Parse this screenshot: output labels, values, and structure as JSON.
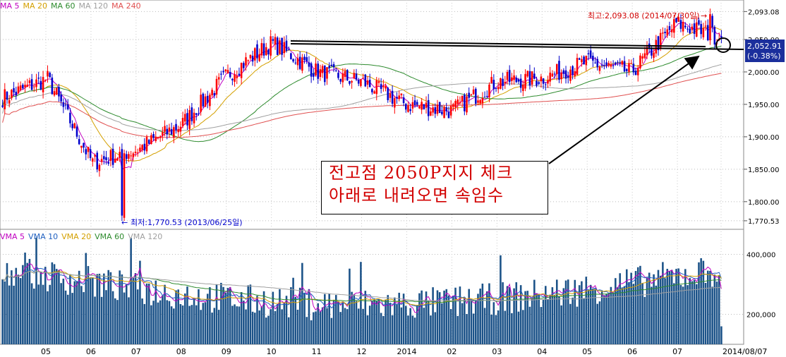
{
  "price_legend": [
    {
      "label": "MA 5",
      "color": "#c000c0"
    },
    {
      "label": "MA 20",
      "color": "#d4a000"
    },
    {
      "label": "MA 60",
      "color": "#2e8b2e"
    },
    {
      "label": "MA 120",
      "color": "#a0a0a0"
    },
    {
      "label": "MA 240",
      "color": "#e05050"
    }
  ],
  "volume_legend": [
    {
      "label": "VMA 5",
      "color": "#c000c0"
    },
    {
      "label": "VMA 10",
      "color": "#2060c0"
    },
    {
      "label": "VMA 20",
      "color": "#d4a000"
    },
    {
      "label": "VMA 60",
      "color": "#2e8b2e"
    },
    {
      "label": "VMA 120",
      "color": "#a0a0a0"
    }
  ],
  "annotation": {
    "line1": "전고점 2050P지지 체크",
    "line2": "아래로 내려오면 속임수"
  },
  "chart_data": {
    "type": "candlestick",
    "up_color": "#ff0000",
    "down_color": "#0000cc",
    "volume_color": "#1b5288",
    "price_ticks": [
      2093.08,
      2050,
      2000,
      1950,
      1900,
      1850,
      1800,
      1770.53
    ],
    "price_tick_labels": [
      "2,093.08",
      "2,050.00",
      "2,000.00",
      "1,950.00",
      "1,900.00",
      "1,850.00",
      "1,800.00",
      "1,770.53"
    ],
    "volume_ticks": [
      400000,
      200000
    ],
    "volume_tick_labels": [
      "400,000",
      "200,000"
    ],
    "x_labels": [
      "05",
      "06",
      "07",
      "08",
      "09",
      "10",
      "11",
      "12",
      "2014",
      "02",
      "03",
      "04",
      "05",
      "06",
      "07",
      "2014/08/07"
    ],
    "current_price": {
      "value": 2052.91,
      "label": "2,052.91",
      "change": "(-0.38%)"
    },
    "high_label": "최고:2,093.08 (2014/07/30일)",
    "low_label": "최저:1,770.53 (2013/06/25일)",
    "high": {
      "value": 2093.08,
      "date": "2014/07/30"
    },
    "low": {
      "value": 1770.53,
      "date": "2013/06/25"
    },
    "monthly_path": [
      {
        "month": "2013/04",
        "close": 1960
      },
      {
        "month": "2013/05",
        "close": 1990
      },
      {
        "month": "2013/06",
        "close": 1860
      },
      {
        "month": "2013/07",
        "close": 1880
      },
      {
        "month": "2013/08",
        "close": 1920
      },
      {
        "month": "2013/09",
        "close": 1995
      },
      {
        "month": "2013/10",
        "close": 2045
      },
      {
        "month": "2013/11",
        "close": 2000
      },
      {
        "month": "2013/12",
        "close": 1985
      },
      {
        "month": "2014/01",
        "close": 1950
      },
      {
        "month": "2014/02",
        "close": 1940
      },
      {
        "month": "2014/03",
        "close": 1985
      },
      {
        "month": "2014/04",
        "close": 1990
      },
      {
        "month": "2014/05",
        "close": 2015
      },
      {
        "month": "2014/06",
        "close": 2000
      },
      {
        "month": "2014/07",
        "close": 2075
      },
      {
        "month": "2014/08",
        "close": 2052.91
      }
    ],
    "volume_range": [
      100000,
      460000
    ]
  }
}
